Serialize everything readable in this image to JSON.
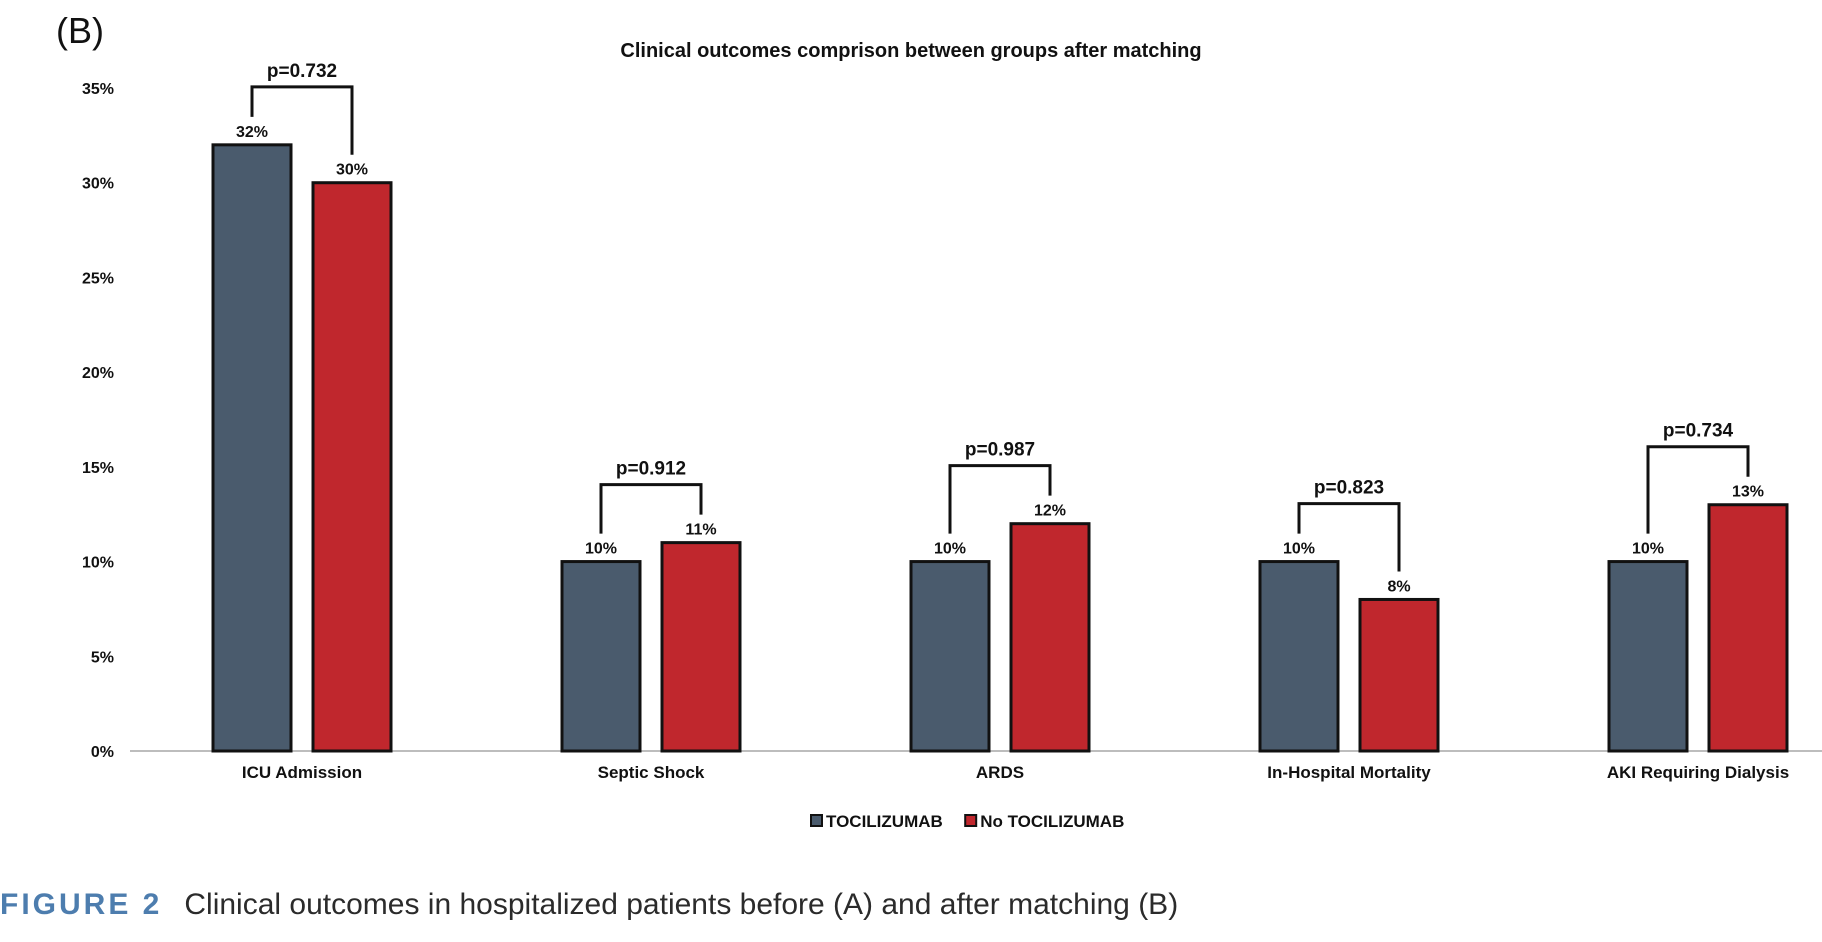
{
  "panel_label": "(B)",
  "caption": {
    "label": "FIGURE 2",
    "text": "Clinical outcomes in hospitalized patients before (A) and after matching (B)"
  },
  "colors": {
    "TOCILIZUMAB": "#4a5b6d",
    "No TOCILIZUMAB": "#c0272d",
    "axis": "#bdbdbd",
    "outline": "#111111"
  },
  "chart_data": {
    "type": "bar",
    "title": "Clinical outcomes comprison between groups after matching",
    "xlabel": "",
    "ylabel": "",
    "categories": [
      "ICU Admission",
      "Septic Shock",
      "ARDS",
      "In-Hospital Mortality",
      "AKI Requiring Dialysis"
    ],
    "series": [
      {
        "name": "TOCILIZUMAB",
        "values": [
          32,
          10,
          10,
          10,
          10
        ],
        "labels": [
          "32%",
          "10%",
          "10%",
          "10%",
          "10%"
        ]
      },
      {
        "name": "No TOCILIZUMAB",
        "values": [
          30,
          11,
          12,
          8,
          13
        ],
        "labels": [
          "30%",
          "11%",
          "12%",
          "8%",
          "13%"
        ]
      }
    ],
    "p_values": [
      "p=0.732",
      "p=0.912",
      "p=0.987",
      "p=0.823",
      "p=0.734"
    ],
    "yticks": [
      "0%",
      "5%",
      "10%",
      "15%",
      "20%",
      "25%",
      "30%",
      "35%"
    ],
    "ylim": [
      0,
      35
    ],
    "grid": false,
    "legend_position": "bottom"
  }
}
